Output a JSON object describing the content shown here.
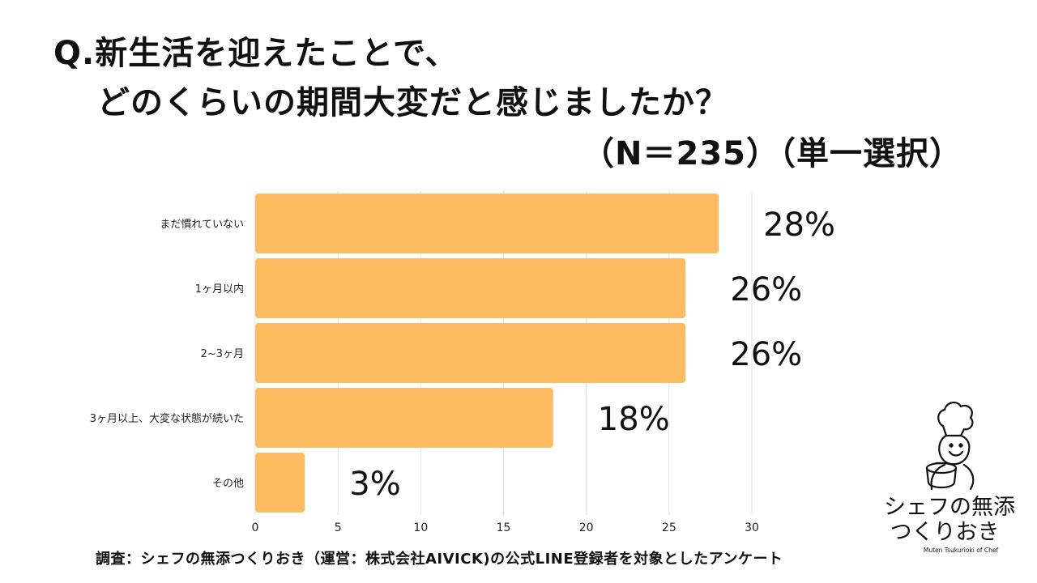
{
  "title": {
    "line1": "Q.新生活を迎えたことで、",
    "line2": "どのくらいの期間大変だと感じましたか？",
    "subtitle": "（N＝235）（単一選択）"
  },
  "footer": "調査：シェフの無添つくりおき（運営：株式会社AIVICK)の公式LINE登録者を対象としたアンケート",
  "logo": {
    "line1": "シェフの無添",
    "line2": "つくりおき",
    "sub": "Muten Tsukurioki of Chef"
  },
  "colors": {
    "bar": "#FDBC5F",
    "grid": "#E2E2E2",
    "text": "#111111"
  },
  "chart_data": {
    "type": "bar",
    "orientation": "horizontal",
    "categories": [
      "まだ慣れていない",
      "1ヶ月以内",
      "2~3ヶ月",
      "3ヶ月以上、大変な状態が続いた",
      "その他"
    ],
    "values": [
      28,
      26,
      26,
      18,
      3
    ],
    "data_labels": [
      "28%",
      "26%",
      "26%",
      "18%",
      "3%"
    ],
    "xlim": [
      0,
      30
    ],
    "xticks": [
      0,
      5,
      10,
      15,
      20,
      25,
      30
    ],
    "grid": true,
    "legend": "none"
  }
}
